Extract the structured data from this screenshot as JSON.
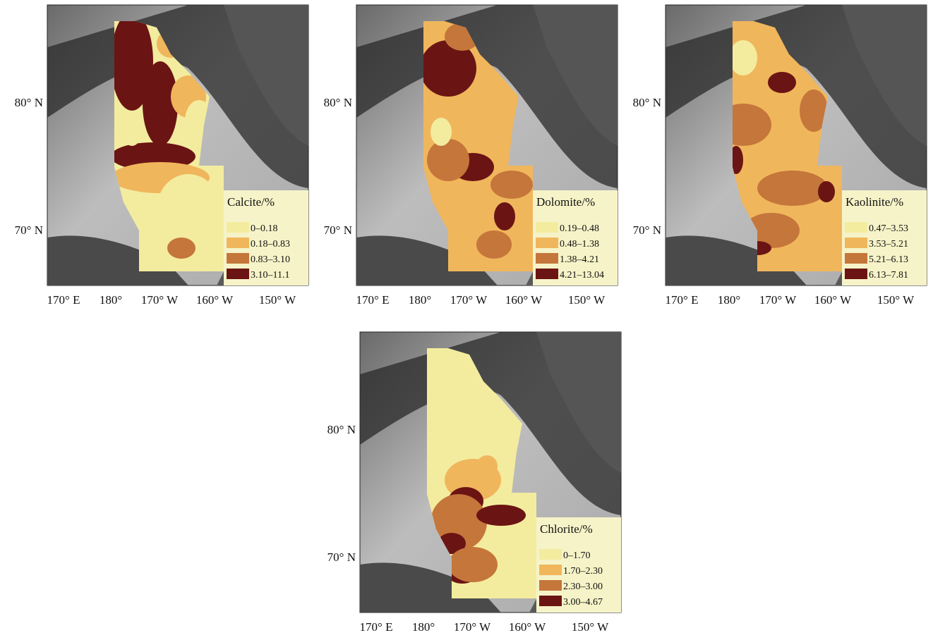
{
  "panels": [
    {
      "legend_title": "Calcite/%",
      "legend": [
        {
          "label": "0–0.18",
          "color": "#f3ec9f"
        },
        {
          "label": "0.18–0.83",
          "color": "#f0b65c"
        },
        {
          "label": "0.83–3.10",
          "color": "#c5763a"
        },
        {
          "label": "3.10–11.1",
          "color": "#6b1414"
        }
      ],
      "lat_labels": [
        "80° N",
        "70° N"
      ],
      "lon_labels": [
        "170° E",
        "180°",
        "170° W",
        "160° W",
        "150° W"
      ]
    },
    {
      "legend_title": "Dolomite/%",
      "legend": [
        {
          "label": "0.19–0.48",
          "color": "#f3ec9f"
        },
        {
          "label": "0.48–1.38",
          "color": "#f0b65c"
        },
        {
          "label": "1.38–4.21",
          "color": "#c5763a"
        },
        {
          "label": "4.21–13.04",
          "color": "#6b1414"
        }
      ],
      "lat_labels": [
        "80° N",
        "70° N"
      ],
      "lon_labels": [
        "170° E",
        "180°",
        "170° W",
        "160° W",
        "150° W"
      ]
    },
    {
      "legend_title": "Kaolinite/%",
      "legend": [
        {
          "label": "0.47–3.53",
          "color": "#f3ec9f"
        },
        {
          "label": "3.53–5.21",
          "color": "#f0b65c"
        },
        {
          "label": "5.21–6.13",
          "color": "#c5763a"
        },
        {
          "label": "6.13–7.81",
          "color": "#6b1414"
        }
      ],
      "lat_labels": [
        "80° N",
        "70° N"
      ],
      "lon_labels": [
        "170° E",
        "180°",
        "170° W",
        "160° W",
        "150° W"
      ]
    },
    {
      "legend_title": "Chlorite/%",
      "legend": [
        {
          "label": "0–1.70",
          "color": "#f3ec9f"
        },
        {
          "label": "1.70–2.30",
          "color": "#f0b65c"
        },
        {
          "label": "2.30–3.00",
          "color": "#c5763a"
        },
        {
          "label": "3.00–4.67",
          "color": "#6b1414"
        }
      ],
      "lat_labels": [
        "80° N",
        "70° N"
      ],
      "lon_labels": [
        "170° E",
        "180°",
        "170° W",
        "160° W",
        "150° W"
      ]
    }
  ]
}
